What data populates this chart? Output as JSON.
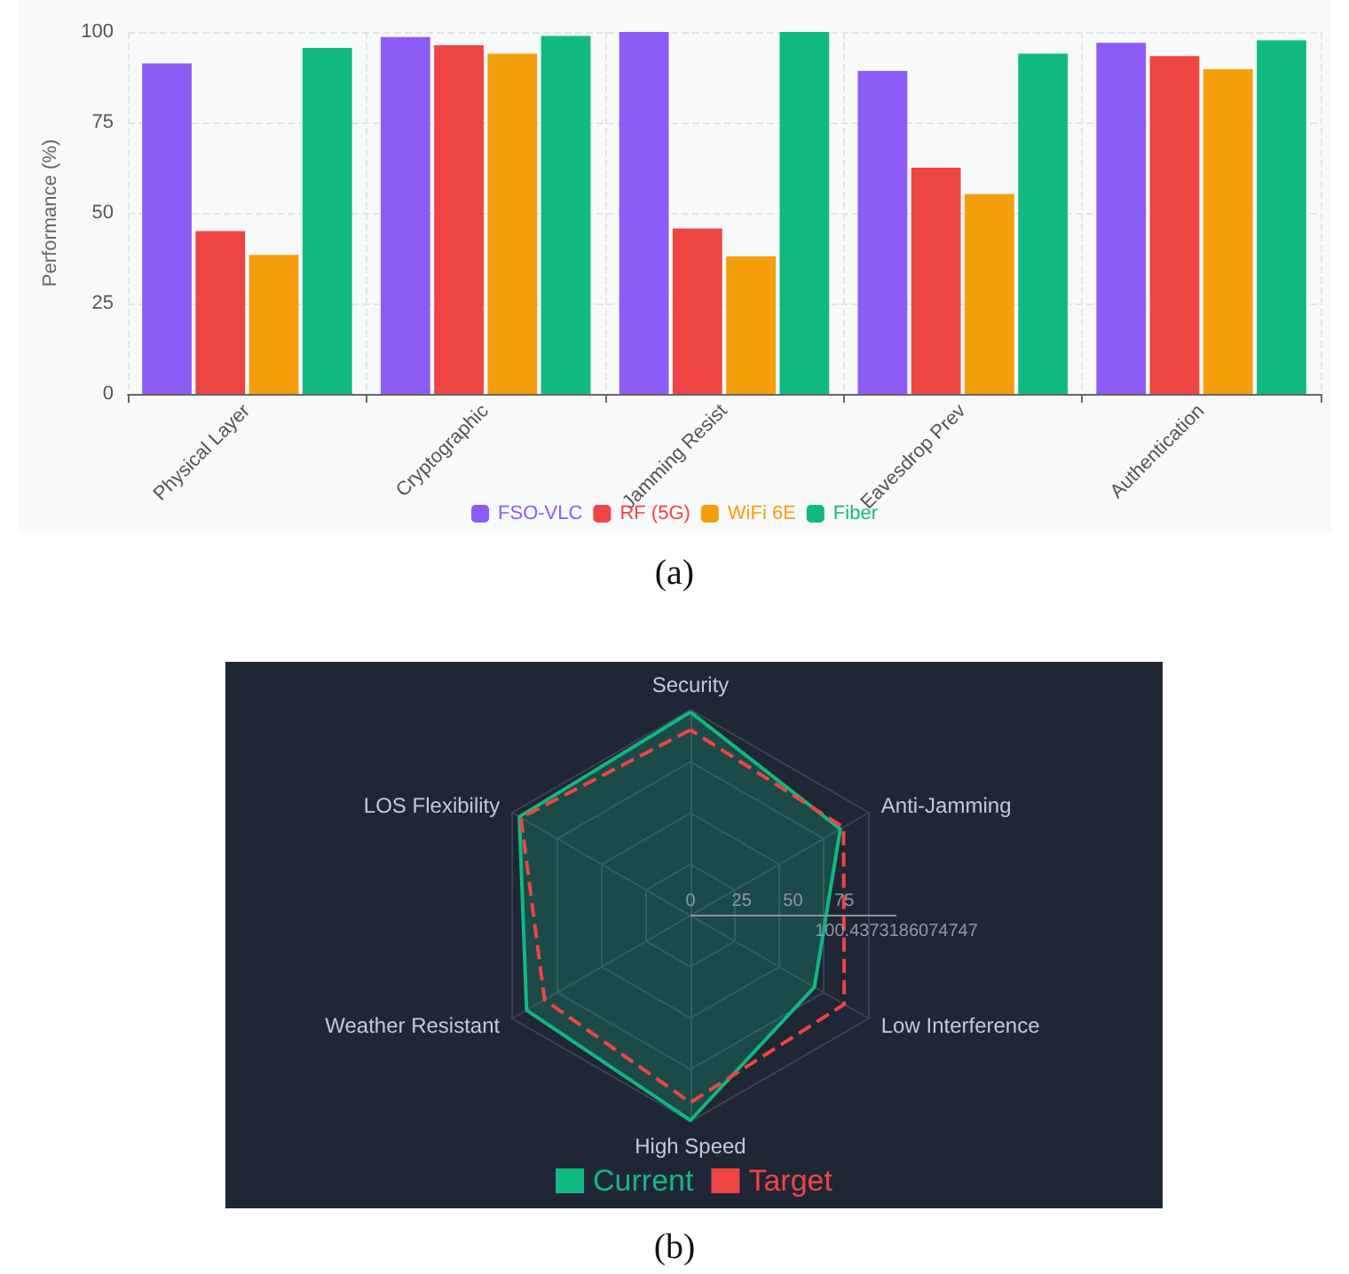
{
  "chart_data": [
    {
      "type": "bar",
      "categories": [
        "Physical Layer",
        "Cryptographic",
        "Jamming Resist",
        "Eavesdrop Prev",
        "Authentication"
      ],
      "ylabel": "Performance (%)",
      "ylim": [
        0,
        100
      ],
      "yticks": [
        0,
        25,
        50,
        75,
        100
      ],
      "grid": true,
      "legend": "bottom",
      "annotations": [
        "(a)"
      ],
      "series": [
        {
          "name": "FSO-VLC",
          "color": "#8b5cf6",
          "values": [
            91.3,
            98.6,
            100,
            89.2,
            97
          ]
        },
        {
          "name": "RF (5G)",
          "color": "#ef4444",
          "values": [
            45,
            96.3,
            45.7,
            62.5,
            93.3
          ]
        },
        {
          "name": "WiFi 6E",
          "color": "#f59e0b",
          "values": [
            38.4,
            94,
            38,
            55.2,
            89.7
          ]
        },
        {
          "name": "Fiber",
          "color": "#10b981",
          "values": [
            95.6,
            98.9,
            100,
            94,
            97.7
          ]
        }
      ]
    },
    {
      "type": "radar",
      "categories": [
        "Security",
        "Anti-Jamming",
        "Low Interference",
        "High Speed",
        "Weather Resistant",
        "LOS Flexibility"
      ],
      "ylim": [
        0,
        100.4373186074747
      ],
      "yticks": [
        0,
        25,
        50,
        75,
        100.4373186074747
      ],
      "grid": true,
      "legend": "bottom",
      "marker": "none",
      "annotations": [
        "(b)"
      ],
      "series": [
        {
          "name": "Current",
          "color": "#10b981",
          "line_style": "solid",
          "values": [
            99.3,
            84.4,
            69.8,
            99.9,
            92.3,
            96.4
          ]
        },
        {
          "name": "Target",
          "color": "#ef4444",
          "line_style": "dashed",
          "values": [
            90.6,
            86.2,
            86.6,
            91.2,
            82.2,
            95.5
          ]
        }
      ]
    }
  ]
}
